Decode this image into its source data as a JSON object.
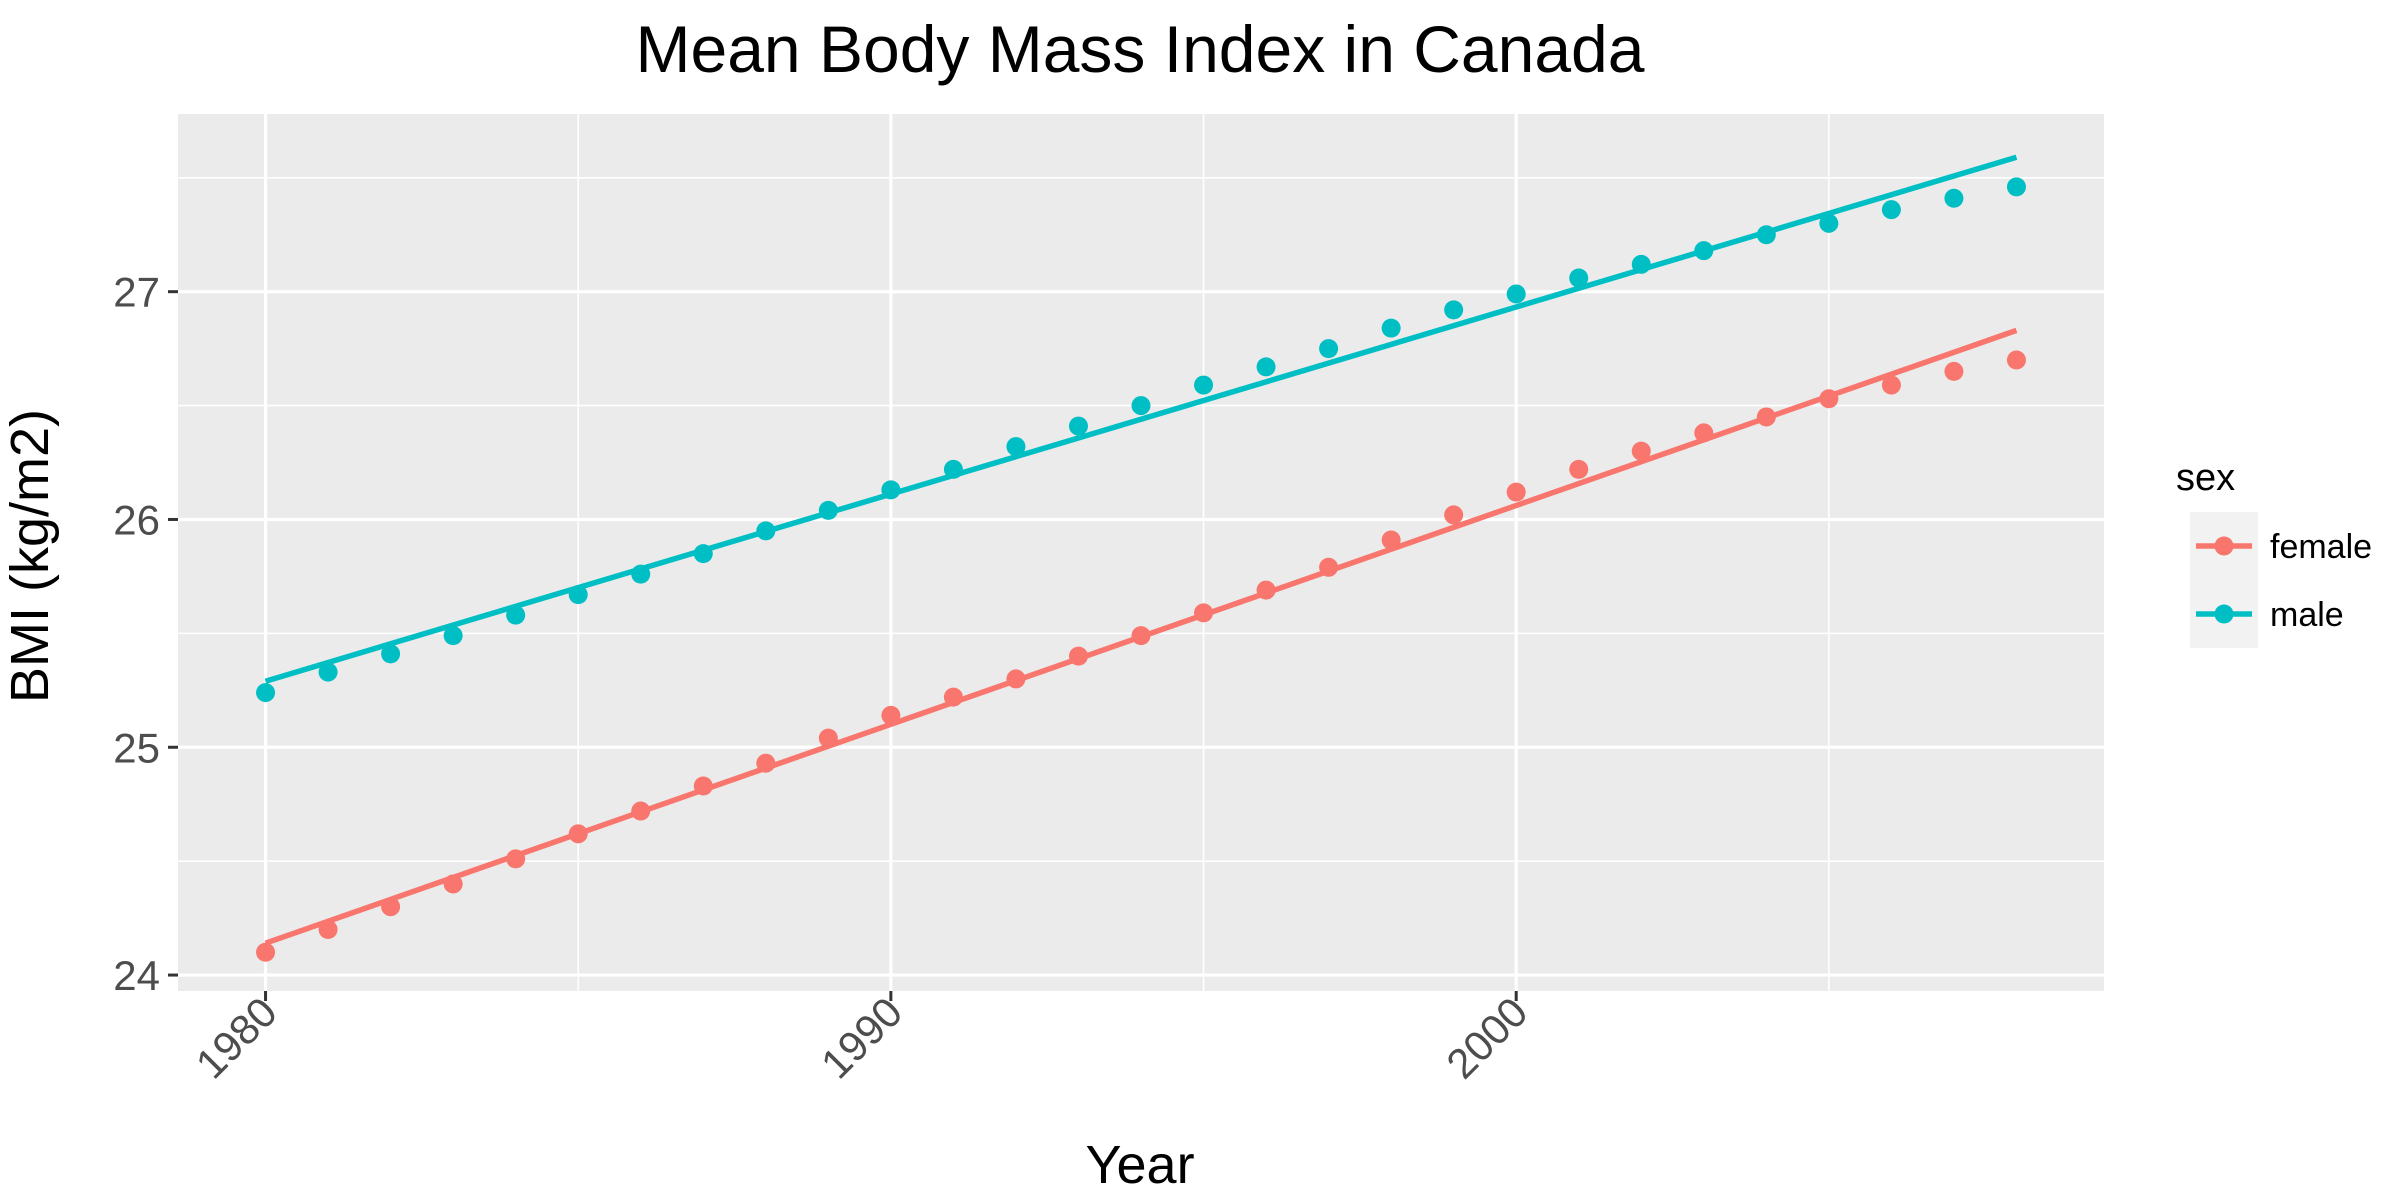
{
  "chart_data": {
    "type": "line",
    "title": "Mean Body Mass Index in Canada",
    "xlabel": "Year",
    "ylabel": "BMI (kg/m2)",
    "xlim": [
      1978.6,
      2009.4
    ],
    "ylim": [
      23.93,
      27.78
    ],
    "x_ticks": [
      1980,
      1990,
      2000
    ],
    "x_tick_labels": [
      "1980",
      "1990",
      "2000"
    ],
    "y_ticks": [
      24,
      25,
      26,
      27
    ],
    "y_tick_labels": [
      "24",
      "25",
      "26",
      "27"
    ],
    "grid": true,
    "legend": {
      "title": "sex",
      "position": "right"
    },
    "x": [
      1980,
      1981,
      1982,
      1983,
      1984,
      1985,
      1986,
      1987,
      1988,
      1989,
      1990,
      1991,
      1992,
      1993,
      1994,
      1995,
      1996,
      1997,
      1998,
      1999,
      2000,
      2001,
      2002,
      2003,
      2004,
      2005,
      2006,
      2007,
      2008
    ],
    "series": [
      {
        "name": "female",
        "color": "#F8766D",
        "points": [
          24.1,
          24.2,
          24.3,
          24.4,
          24.51,
          24.62,
          24.72,
          24.83,
          24.93,
          25.04,
          25.14,
          25.22,
          25.3,
          25.4,
          25.49,
          25.59,
          25.69,
          25.79,
          25.91,
          26.02,
          26.12,
          26.22,
          26.3,
          26.38,
          26.45,
          26.53,
          26.59,
          26.65,
          26.7
        ],
        "fit": [
          24.14,
          26.83
        ]
      },
      {
        "name": "male",
        "color": "#00BFC4",
        "points": [
          25.24,
          25.33,
          25.41,
          25.49,
          25.58,
          25.67,
          25.76,
          25.85,
          25.95,
          26.04,
          26.13,
          26.22,
          26.32,
          26.41,
          26.5,
          26.59,
          26.67,
          26.75,
          26.84,
          26.92,
          26.99,
          27.06,
          27.12,
          27.18,
          27.25,
          27.3,
          27.36,
          27.41,
          27.46
        ],
        "fit": [
          25.29,
          27.59
        ]
      }
    ]
  }
}
